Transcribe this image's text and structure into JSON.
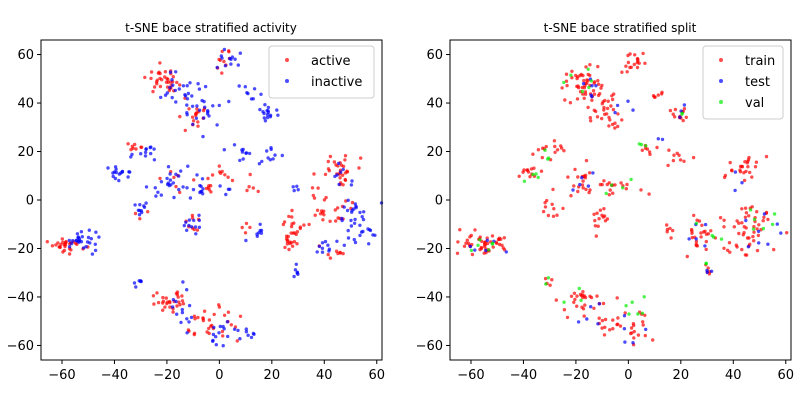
{
  "chart_data": [
    {
      "type": "scatter",
      "title": "t-SNE bace stratified activity",
      "xlabel": "",
      "ylabel": "",
      "xlim": [
        -68,
        62
      ],
      "ylim": [
        -66,
        66
      ],
      "xticks": [
        -60,
        -40,
        -20,
        0,
        20,
        40,
        60
      ],
      "yticks": [
        -60,
        -40,
        -20,
        0,
        20,
        40,
        60
      ],
      "grid": false,
      "legend_position": "top-right",
      "series": [
        {
          "name": "active",
          "color": "#ff0000",
          "clusters": [
            {
              "cx": -58,
              "cy": -19,
              "sx": 3.0,
              "sy": 1.5,
              "n": 28
            },
            {
              "cx": -21,
              "cy": 49,
              "sx": 3.0,
              "sy": 2.5,
              "n": 34
            },
            {
              "cx": -10,
              "cy": 36,
              "sx": 3.0,
              "sy": 4.0,
              "n": 18
            },
            {
              "cx": 2,
              "cy": 57,
              "sx": 2.0,
              "sy": 2.0,
              "n": 10
            },
            {
              "cx": -32,
              "cy": 22,
              "sx": 2.0,
              "sy": 1.5,
              "n": 8
            },
            {
              "cx": 45,
              "cy": 14,
              "sx": 4.0,
              "sy": 3.0,
              "n": 30
            },
            {
              "cx": 28,
              "cy": -14,
              "sx": 3.0,
              "sy": 5.0,
              "n": 30
            },
            {
              "cx": 42,
              "cy": -5,
              "sx": 6.0,
              "sy": 3.0,
              "n": 20
            },
            {
              "cx": 44,
              "cy": -22,
              "sx": 3.0,
              "sy": 2.0,
              "n": 8
            },
            {
              "cx": -18,
              "cy": -42,
              "sx": 3.0,
              "sy": 2.5,
              "n": 28
            },
            {
              "cx": -8,
              "cy": -50,
              "sx": 4.0,
              "sy": 3.0,
              "n": 16
            },
            {
              "cx": 3,
              "cy": -50,
              "sx": 3.0,
              "sy": 5.0,
              "n": 14
            },
            {
              "cx": -10,
              "cy": -9,
              "sx": 2.0,
              "sy": 2.0,
              "n": 8
            },
            {
              "cx": 1,
              "cy": 11,
              "sx": 2.0,
              "sy": 2.0,
              "n": 8
            },
            {
              "cx": -5,
              "cy": 5,
              "sx": 3.0,
              "sy": 2.0,
              "n": 8
            },
            {
              "cx": 37,
              "cy": 2,
              "sx": 2.0,
              "sy": 3.0,
              "n": 6
            },
            {
              "cx": -18,
              "cy": 8,
              "sx": 3.0,
              "sy": 2.0,
              "n": 6
            },
            {
              "cx": 12,
              "cy": 6,
              "sx": 2.0,
              "sy": 3.0,
              "n": 5
            },
            {
              "cx": 8,
              "cy": -12,
              "sx": 2.0,
              "sy": 2.0,
              "n": 4
            },
            {
              "cx": -30,
              "cy": -5,
              "sx": 2.0,
              "sy": 2.0,
              "n": 3
            }
          ]
        },
        {
          "name": "inactive",
          "color": "#0000ff",
          "clusters": [
            {
              "cx": -52,
              "cy": -17,
              "sx": 3.0,
              "sy": 2.0,
              "n": 28
            },
            {
              "cx": -15,
              "cy": 45,
              "sx": 4.0,
              "sy": 4.0,
              "n": 24
            },
            {
              "cx": -6,
              "cy": 38,
              "sx": 3.0,
              "sy": 4.0,
              "n": 20
            },
            {
              "cx": 4,
              "cy": 58,
              "sx": 2.0,
              "sy": 2.0,
              "n": 12
            },
            {
              "cx": 19,
              "cy": 36,
              "sx": 2.0,
              "sy": 2.0,
              "n": 16
            },
            {
              "cx": 11,
              "cy": 44,
              "sx": 2.0,
              "sy": 1.5,
              "n": 8
            },
            {
              "cx": -38,
              "cy": 11,
              "sx": 2.0,
              "sy": 1.5,
              "n": 16
            },
            {
              "cx": -28,
              "cy": 19,
              "sx": 3.0,
              "sy": 2.0,
              "n": 12
            },
            {
              "cx": -18,
              "cy": 8,
              "sx": 4.0,
              "sy": 3.0,
              "n": 24
            },
            {
              "cx": -5,
              "cy": 5,
              "sx": 5.0,
              "sy": 2.0,
              "n": 14
            },
            {
              "cx": 9,
              "cy": 20,
              "sx": 3.0,
              "sy": 2.0,
              "n": 10
            },
            {
              "cx": 20,
              "cy": 18,
              "sx": 2.0,
              "sy": 2.0,
              "n": 10
            },
            {
              "cx": -30,
              "cy": -4,
              "sx": 2.0,
              "sy": 2.0,
              "n": 10
            },
            {
              "cx": -11,
              "cy": -9,
              "sx": 2.0,
              "sy": 3.0,
              "n": 12
            },
            {
              "cx": 15,
              "cy": -13,
              "sx": 1.5,
              "sy": 2.0,
              "n": 8
            },
            {
              "cx": 52,
              "cy": -10,
              "sx": 4.0,
              "sy": 5.0,
              "n": 36
            },
            {
              "cx": 40,
              "cy": -20,
              "sx": 4.0,
              "sy": 2.0,
              "n": 10
            },
            {
              "cx": 30,
              "cy": -30,
              "sx": 1.0,
              "sy": 2.0,
              "n": 6
            },
            {
              "cx": -31,
              "cy": -34,
              "sx": 1.0,
              "sy": 1.0,
              "n": 6
            },
            {
              "cx": -14,
              "cy": -45,
              "sx": 3.0,
              "sy": 4.0,
              "n": 14
            },
            {
              "cx": 2,
              "cy": -55,
              "sx": 3.0,
              "sy": 3.0,
              "n": 16
            },
            {
              "cx": 10,
              "cy": -55,
              "sx": 3.0,
              "sy": 1.0,
              "n": 6
            },
            {
              "cx": 30,
              "cy": 5,
              "sx": 1.0,
              "sy": 1.0,
              "n": 4
            },
            {
              "cx": 47,
              "cy": 10,
              "sx": 3.0,
              "sy": 3.0,
              "n": 8
            }
          ]
        }
      ]
    },
    {
      "type": "scatter",
      "title": "t-SNE bace stratified split",
      "xlabel": "",
      "ylabel": "",
      "xlim": [
        -68,
        62
      ],
      "ylim": [
        -66,
        66
      ],
      "xticks": [
        -60,
        -40,
        -20,
        0,
        20,
        40,
        60
      ],
      "yticks": [
        -60,
        -40,
        -20,
        0,
        20,
        40,
        60
      ],
      "grid": false,
      "legend_position": "top-right",
      "series": [
        {
          "name": "train",
          "color": "#ff0000",
          "clusters": [
            {
              "cx": -55,
              "cy": -18,
              "sx": 4.0,
              "sy": 2.0,
              "n": 48
            },
            {
              "cx": -18,
              "cy": 47,
              "sx": 4.0,
              "sy": 4.0,
              "n": 50
            },
            {
              "cx": -8,
              "cy": 37,
              "sx": 3.0,
              "sy": 4.0,
              "n": 30
            },
            {
              "cx": 2,
              "cy": 57,
              "sx": 2.0,
              "sy": 2.0,
              "n": 18
            },
            {
              "cx": 19,
              "cy": 36,
              "sx": 2.0,
              "sy": 2.0,
              "n": 12
            },
            {
              "cx": 11,
              "cy": 44,
              "sx": 2.0,
              "sy": 1.5,
              "n": 6
            },
            {
              "cx": -37,
              "cy": 11,
              "sx": 2.0,
              "sy": 1.5,
              "n": 12
            },
            {
              "cx": -29,
              "cy": 20,
              "sx": 3.0,
              "sy": 2.0,
              "n": 14
            },
            {
              "cx": -18,
              "cy": 8,
              "sx": 4.0,
              "sy": 3.0,
              "n": 22
            },
            {
              "cx": -5,
              "cy": 5,
              "sx": 5.0,
              "sy": 2.0,
              "n": 16
            },
            {
              "cx": 9,
              "cy": 20,
              "sx": 3.0,
              "sy": 2.0,
              "n": 8
            },
            {
              "cx": 20,
              "cy": 18,
              "sx": 2.0,
              "sy": 2.0,
              "n": 8
            },
            {
              "cx": -30,
              "cy": -4,
              "sx": 2.0,
              "sy": 2.0,
              "n": 10
            },
            {
              "cx": -10,
              "cy": -9,
              "sx": 2.0,
              "sy": 3.0,
              "n": 14
            },
            {
              "cx": 15,
              "cy": -13,
              "sx": 1.5,
              "sy": 2.0,
              "n": 6
            },
            {
              "cx": 48,
              "cy": -10,
              "sx": 6.0,
              "sy": 5.0,
              "n": 40
            },
            {
              "cx": 44,
              "cy": 13,
              "sx": 4.0,
              "sy": 3.0,
              "n": 24
            },
            {
              "cx": 28,
              "cy": -14,
              "sx": 3.0,
              "sy": 5.0,
              "n": 26
            },
            {
              "cx": 40,
              "cy": -20,
              "sx": 4.0,
              "sy": 2.0,
              "n": 10
            },
            {
              "cx": -18,
              "cy": -42,
              "sx": 3.0,
              "sy": 3.0,
              "n": 26
            },
            {
              "cx": -8,
              "cy": -50,
              "sx": 4.0,
              "sy": 3.0,
              "n": 14
            },
            {
              "cx": 3,
              "cy": -52,
              "sx": 3.0,
              "sy": 5.0,
              "n": 18
            },
            {
              "cx": -31,
              "cy": -34,
              "sx": 1.0,
              "sy": 1.0,
              "n": 4
            },
            {
              "cx": 30,
              "cy": -30,
              "sx": 1.0,
              "sy": 2.0,
              "n": 4
            }
          ]
        },
        {
          "name": "test",
          "color": "#0000ff",
          "clusters": [
            {
              "cx": -55,
              "cy": -18,
              "sx": 4.0,
              "sy": 2.0,
              "n": 6
            },
            {
              "cx": -15,
              "cy": 46,
              "sx": 4.0,
              "sy": 4.0,
              "n": 6
            },
            {
              "cx": -5,
              "cy": 38,
              "sx": 3.0,
              "sy": 4.0,
              "n": 4
            },
            {
              "cx": 19,
              "cy": 36,
              "sx": 2.0,
              "sy": 2.0,
              "n": 3
            },
            {
              "cx": -18,
              "cy": 8,
              "sx": 4.0,
              "sy": 3.0,
              "n": 5
            },
            {
              "cx": 50,
              "cy": -12,
              "sx": 5.0,
              "sy": 5.0,
              "n": 8
            },
            {
              "cx": 28,
              "cy": -15,
              "sx": 3.0,
              "sy": 5.0,
              "n": 5
            },
            {
              "cx": -14,
              "cy": -45,
              "sx": 3.0,
              "sy": 4.0,
              "n": 5
            },
            {
              "cx": 2,
              "cy": -55,
              "sx": 3.0,
              "sy": 3.0,
              "n": 5
            },
            {
              "cx": 13,
              "cy": 26,
              "sx": 1.0,
              "sy": 1.0,
              "n": 2
            },
            {
              "cx": 30,
              "cy": -30,
              "sx": 1.0,
              "sy": 1.0,
              "n": 3
            },
            {
              "cx": 44,
              "cy": 8,
              "sx": 2.0,
              "sy": 2.0,
              "n": 3
            }
          ]
        },
        {
          "name": "val",
          "color": "#00ee00",
          "clusters": [
            {
              "cx": -55,
              "cy": -18,
              "sx": 4.0,
              "sy": 2.0,
              "n": 6
            },
            {
              "cx": -20,
              "cy": 48,
              "sx": 4.0,
              "sy": 3.0,
              "n": 6
            },
            {
              "cx": -36,
              "cy": 10,
              "sx": 2.0,
              "sy": 2.0,
              "n": 4
            },
            {
              "cx": -28,
              "cy": 20,
              "sx": 2.0,
              "sy": 2.0,
              "n": 3
            },
            {
              "cx": -5,
              "cy": 5,
              "sx": 4.0,
              "sy": 2.0,
              "n": 4
            },
            {
              "cx": 5,
              "cy": 22,
              "sx": 2.0,
              "sy": 1.0,
              "n": 3
            },
            {
              "cx": 50,
              "cy": -10,
              "sx": 5.0,
              "sy": 5.0,
              "n": 6
            },
            {
              "cx": 30,
              "cy": -15,
              "sx": 3.0,
              "sy": 4.0,
              "n": 4
            },
            {
              "cx": 4,
              "cy": -46,
              "sx": 3.0,
              "sy": 3.0,
              "n": 6
            },
            {
              "cx": -18,
              "cy": -40,
              "sx": 3.0,
              "sy": 2.0,
              "n": 3
            },
            {
              "cx": -31,
              "cy": -34,
              "sx": 1.0,
              "sy": 1.0,
              "n": 2
            },
            {
              "cx": 30,
              "cy": -28,
              "sx": 1.0,
              "sy": 1.0,
              "n": 2
            },
            {
              "cx": 20,
              "cy": 35,
              "sx": 1.0,
              "sy": 1.0,
              "n": 2
            }
          ]
        }
      ]
    }
  ]
}
